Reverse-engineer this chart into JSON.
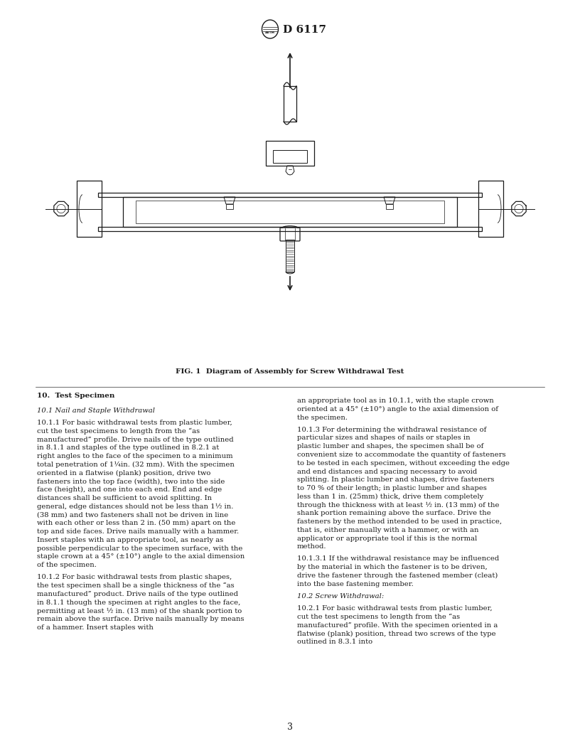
{
  "page_width": 8.16,
  "page_height": 10.56,
  "dpi": 100,
  "bg_color": "#ffffff",
  "text_color": "#1a1a1a",
  "header_text": "D 6117",
  "figure_caption": "FIG. 1  Diagram of Assembly for Screw Withdrawal Test",
  "page_number": "3",
  "section_title": "10.  Test Specimen",
  "col1_paragraphs": [
    {
      "style": "italic",
      "text": "10.1  Nail and Staple Withdrawal"
    },
    {
      "style": "normal",
      "indent": true,
      "text": "10.1.1  For basic withdrawal tests from plastic lumber, cut the test specimens to length from the “as manufactured” profile. Drive nails of the type outlined in 8.1.1 and staples of the type outlined in 8.2.1 at right angles to the face of the specimen to a minimum total penetration of 1¼in. (32 mm). With the specimen oriented in a flatwise (plank) position, drive two fasteners into the top face (width), two into the side face (height), and one into each end. End and edge distances shall be sufficient to avoid splitting. In general, edge distances should not be less than 1½ in. (38 mm) and two fasteners shall not be driven in line with each other or less than 2 in. (50 mm) apart on the top and side faces. Drive nails manually with a hammer. Insert staples with an appropriate tool, as nearly as possible perpendicular to the specimen surface, with the staple crown at a 45° (±10°) angle to the axial dimension of the specimen."
    },
    {
      "style": "normal",
      "indent": true,
      "text": "10.1.2  For basic withdrawal tests from plastic shapes, the test specimen shall be a single thickness of the “as manufactured” product. Drive nails of the type outlined in 8.1.1 though the specimen at right angles to the face, permitting at least ½ in. (13 mm) of the shank portion to remain above the surface. Drive nails manually by means of a hammer. Insert staples with"
    }
  ],
  "col2_paragraphs": [
    {
      "style": "normal",
      "indent": false,
      "text": "an appropriate tool as in 10.1.1, with the staple crown oriented at a 45° (±10°) angle to the axial dimension of the specimen."
    },
    {
      "style": "normal",
      "indent": true,
      "text": "10.1.3  For determining the withdrawal resistance of particular sizes and shapes of nails or staples in plastic lumber and shapes, the specimen shall be of convenient size to accommodate the quantity of fasteners to be tested in each specimen, without exceeding the edge and end distances and spacing necessary to avoid splitting. In plastic lumber and shapes, drive fasteners to 70 % of their length; in plastic lumber and shapes less than 1 in. (25mm) thick, drive them completely through the thickness with at least ½ in. (13 mm) of the shank portion remaining above the surface. Drive the fasteners by the method intended to be used in practice, that is, either manually with a hammer, or with an applicator or appropriate tool if this is the normal method."
    },
    {
      "style": "normal",
      "indent": true,
      "text": "10.1.3.1  If the withdrawal resistance may be influenced by the material in which the fastener is to be driven, drive the fastener through the fastened member (cleat) into the base fastening member."
    },
    {
      "style": "italic",
      "indent": false,
      "text": "10.2  Screw Withdrawal:"
    },
    {
      "style": "normal",
      "indent": true,
      "text": "10.2.1  For basic withdrawal tests from plastic lumber, cut the test specimens to length from the “as manufactured” profile. With the specimen oriented in a flatwise (plank) position, thread two screws of the type outlined in 8.3.1 into"
    }
  ]
}
